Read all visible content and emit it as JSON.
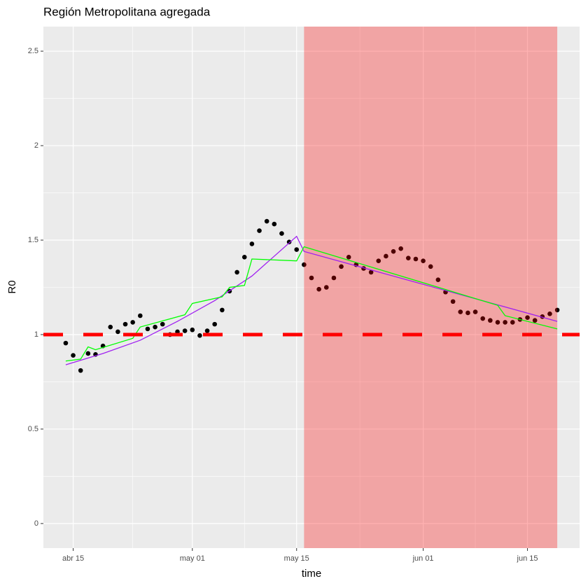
{
  "chart_data": {
    "type": "scatter",
    "title": "Región Metropolitana agregada",
    "x_label": "time",
    "y_label": "R0",
    "points": {
      "color": "#000000",
      "x": [
        "04-14",
        "04-15",
        "04-16",
        "04-17",
        "04-18",
        "04-19",
        "04-20",
        "04-21",
        "04-22",
        "04-23",
        "04-24",
        "04-25",
        "04-26",
        "04-27",
        "04-28",
        "04-29",
        "04-30",
        "05-01",
        "05-02",
        "05-03",
        "05-04",
        "05-05",
        "05-06",
        "05-07",
        "05-08",
        "05-09",
        "05-10",
        "05-11",
        "05-12",
        "05-13",
        "05-14",
        "05-15",
        "05-16",
        "05-17",
        "05-18",
        "05-19",
        "05-20",
        "05-21",
        "05-22",
        "05-23",
        "05-24",
        "05-25",
        "05-26",
        "05-27",
        "05-28",
        "05-29",
        "05-30",
        "05-31",
        "06-01",
        "06-02",
        "06-03",
        "06-04",
        "06-05",
        "06-06",
        "06-07",
        "06-08",
        "06-09",
        "06-10",
        "06-11",
        "06-12",
        "06-13",
        "06-14",
        "06-15",
        "06-16",
        "06-17",
        "06-18",
        "06-19"
      ],
      "values": [
        0.955,
        0.89,
        0.81,
        0.9,
        0.895,
        0.94,
        1.04,
        1.015,
        1.055,
        1.065,
        1.1,
        1.03,
        1.04,
        1.055,
        1.0,
        1.015,
        1.02,
        1.025,
        0.995,
        1.02,
        1.055,
        1.13,
        1.23,
        1.33,
        1.41,
        1.48,
        1.55,
        1.6,
        1.585,
        1.535,
        1.49,
        1.45,
        1.37,
        1.3,
        1.24,
        1.25,
        1.3,
        1.36,
        1.41,
        1.37,
        1.35,
        1.33,
        1.39,
        1.415,
        1.44,
        1.455,
        1.405,
        1.4,
        1.39,
        1.36,
        1.29,
        1.225,
        1.175,
        1.12,
        1.115,
        1.12,
        1.085,
        1.075,
        1.065,
        1.065,
        1.065,
        1.08,
        1.09,
        1.075,
        1.095,
        1.11,
        1.13
      ]
    },
    "lines": [
      {
        "color": "#a020f0",
        "x": [
          "04-14",
          "04-19",
          "04-24",
          "04-29",
          "05-04",
          "05-09",
          "05-15",
          "05-16",
          "06-19"
        ],
        "values": [
          0.84,
          0.9,
          0.97,
          1.07,
          1.18,
          1.31,
          1.52,
          1.44,
          1.07
        ]
      },
      {
        "color": "#00ff00",
        "x": [
          "04-14",
          "04-16",
          "04-17",
          "04-18",
          "04-23",
          "04-24",
          "04-30",
          "05-01",
          "05-05",
          "05-06",
          "05-08",
          "05-09",
          "05-15",
          "05-16",
          "06-11",
          "06-12",
          "06-19"
        ],
        "values": [
          0.86,
          0.87,
          0.935,
          0.92,
          0.98,
          1.04,
          1.105,
          1.165,
          1.2,
          1.25,
          1.26,
          1.4,
          1.39,
          1.465,
          1.155,
          1.1,
          1.03
        ]
      }
    ],
    "shaded_region": {
      "x": [
        "05-16",
        "06-19"
      ],
      "color": "#ff0000",
      "alpha": 0.3
    },
    "hline": {
      "value": 1,
      "color": "#ff0000"
    },
    "xlim": [
      "04-11",
      "06-22"
    ],
    "xticks": [
      {
        "value": "04-15",
        "label": "abr 15"
      },
      {
        "value": "05-01",
        "label": "may 01"
      },
      {
        "value": "05-15",
        "label": "may 15"
      },
      {
        "value": "06-01",
        "label": "jun 01"
      },
      {
        "value": "06-15",
        "label": "jun 15"
      }
    ],
    "ylim": [
      -0.13,
      2.63
    ],
    "yticks": [
      0,
      0.5,
      1,
      1.5,
      2,
      2.5
    ],
    "grid": true
  }
}
